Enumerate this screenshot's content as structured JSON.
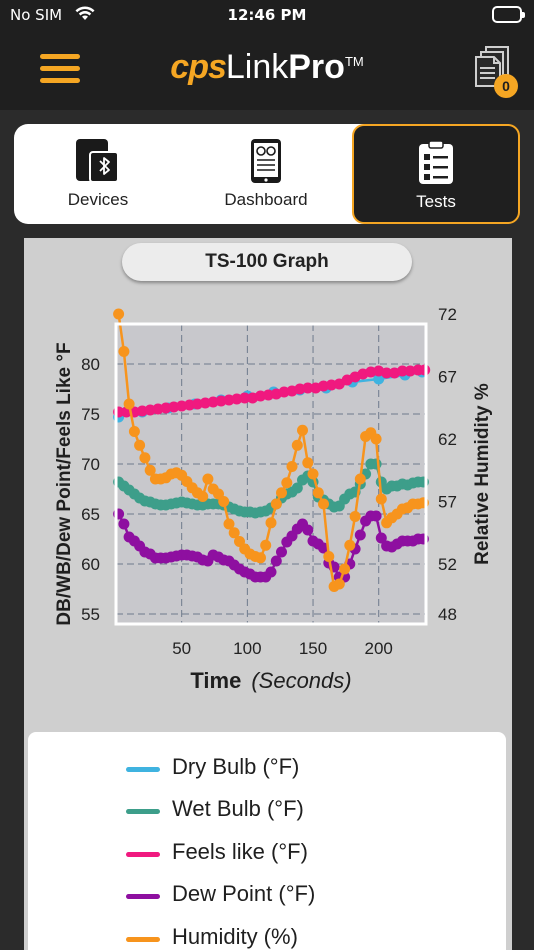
{
  "status": {
    "carrier": "No SIM",
    "time": "12:46 PM",
    "battery_color": "#3cc84a"
  },
  "header": {
    "brand_cps": "cps",
    "brand_link": "Link",
    "brand_pro": "Pro",
    "brand_tm": "TM",
    "menu_icon": "hamburger-icon",
    "docs_icon": "documents-icon",
    "docs_badge": "0",
    "accent": "#f5a623"
  },
  "tabs": [
    {
      "label": "Devices",
      "icon": "tablet-bluetooth-icon",
      "active": false
    },
    {
      "label": "Dashboard",
      "icon": "dashboard-tablet-icon",
      "active": false
    },
    {
      "label": "Tests",
      "icon": "checklist-icon",
      "active": true
    }
  ],
  "graph": {
    "title": "TS-100 Graph"
  },
  "chart_data": {
    "type": "line",
    "xlabel": "Time",
    "xlabel_unit": "(Seconds)",
    "ylabel_left": "DB/WB/Dew Point/Feels Like  °F",
    "ylabel_right": "Relative Humidity %",
    "x_ticks": [
      50,
      100,
      150,
      200
    ],
    "y_left_ticks": [
      55,
      60,
      65,
      70,
      75,
      80
    ],
    "y_right_ticks": [
      48,
      52,
      57,
      62,
      67,
      72
    ],
    "xlim": [
      0,
      236
    ],
    "ylim_left": [
      54,
      84
    ],
    "ylim_right": [
      47.2,
      71.2
    ],
    "grid": true,
    "legend_placement": "bottom",
    "series": [
      {
        "name": "Dry Bulb (°F)",
        "color": "#3fb3e0",
        "axis": "left",
        "x": [
          2,
          20,
          40,
          60,
          80,
          100,
          120,
          140,
          160,
          180,
          200,
          220,
          233
        ],
        "values": [
          74.7,
          75.2,
          75.6,
          76.0,
          76.4,
          76.8,
          77.2,
          77.4,
          77.6,
          78.2,
          78.5,
          78.9,
          79.2
        ]
      },
      {
        "name": "Wet Bulb (°F)",
        "color": "#3d9e8a",
        "axis": "left",
        "x": [
          2,
          6,
          10,
          14,
          18,
          22,
          26,
          30,
          34,
          38,
          42,
          46,
          50,
          54,
          58,
          62,
          66,
          70,
          74,
          78,
          82,
          86,
          90,
          94,
          98,
          102,
          106,
          110,
          114,
          118,
          122,
          126,
          130,
          134,
          138,
          142,
          146,
          150,
          154,
          158,
          162,
          166,
          170,
          174,
          178,
          182,
          186,
          190,
          194,
          198,
          202,
          206,
          210,
          214,
          218,
          222,
          226,
          230,
          234
        ],
        "values": [
          68.2,
          67.8,
          67.4,
          67.0,
          66.6,
          66.3,
          66.2,
          66.0,
          65.9,
          65.9,
          66.0,
          66.1,
          66.2,
          66.1,
          66.0,
          65.9,
          65.9,
          66.0,
          66.0,
          66.0,
          65.9,
          65.7,
          65.5,
          65.3,
          65.2,
          65.2,
          65.1,
          65.2,
          65.3,
          65.6,
          66.0,
          66.6,
          67.0,
          67.2,
          67.6,
          68.4,
          68.8,
          68.2,
          66.7,
          66.4,
          66.0,
          65.7,
          65.8,
          66.5,
          67.0,
          67.2,
          68.0,
          69.0,
          70.0,
          70.0,
          68.2,
          67.5,
          67.8,
          67.8,
          68.0,
          67.9,
          68.1,
          68.2,
          68.2
        ]
      },
      {
        "name": "Feels like (°F)",
        "color": "#f0197f",
        "axis": "left",
        "x": [
          2,
          8,
          14,
          20,
          26,
          32,
          38,
          44,
          50,
          56,
          62,
          68,
          74,
          80,
          86,
          92,
          98,
          104,
          110,
          116,
          122,
          128,
          134,
          140,
          146,
          152,
          158,
          164,
          170,
          176,
          182,
          188,
          194,
          200,
          206,
          212,
          218,
          224,
          230,
          235
        ],
        "values": [
          75.2,
          75.2,
          75.2,
          75.3,
          75.4,
          75.5,
          75.6,
          75.7,
          75.8,
          75.9,
          76.0,
          76.1,
          76.2,
          76.3,
          76.4,
          76.5,
          76.6,
          76.6,
          76.8,
          76.9,
          77.0,
          77.2,
          77.3,
          77.5,
          77.6,
          77.6,
          77.8,
          77.9,
          78.0,
          78.4,
          78.7,
          79.0,
          79.2,
          79.3,
          79.1,
          79.1,
          79.3,
          79.3,
          79.4,
          79.4
        ]
      },
      {
        "name": "Dew Point (°F)",
        "color": "#8e0fa0",
        "axis": "left",
        "x": [
          2,
          6,
          10,
          14,
          18,
          22,
          26,
          30,
          34,
          38,
          42,
          46,
          50,
          54,
          58,
          62,
          66,
          70,
          74,
          78,
          82,
          86,
          90,
          94,
          98,
          102,
          106,
          110,
          114,
          118,
          122,
          126,
          130,
          134,
          138,
          142,
          146,
          150,
          154,
          158,
          162,
          166,
          170,
          174,
          178,
          182,
          186,
          190,
          194,
          198,
          202,
          206,
          210,
          214,
          218,
          222,
          226,
          230,
          234
        ],
        "values": [
          65.0,
          64.0,
          62.7,
          62.3,
          61.8,
          61.2,
          61.0,
          60.6,
          60.6,
          60.6,
          60.7,
          60.8,
          60.9,
          60.9,
          60.8,
          60.7,
          60.4,
          60.3,
          60.9,
          60.7,
          60.4,
          60.3,
          59.9,
          59.5,
          59.2,
          59.0,
          58.7,
          58.7,
          58.7,
          59.2,
          60.3,
          61.2,
          62.2,
          62.8,
          63.5,
          64.0,
          63.4,
          62.3,
          62.0,
          61.6,
          60.1,
          59.7,
          58.7,
          58.7,
          60.0,
          61.5,
          62.9,
          64.3,
          64.8,
          64.8,
          62.6,
          61.8,
          61.7,
          62.0,
          62.3,
          62.3,
          62.3,
          62.5,
          62.5
        ]
      },
      {
        "name": "Humidity (%)",
        "color": "#f7941d",
        "axis": "right",
        "x": [
          2,
          6,
          10,
          14,
          18,
          22,
          26,
          30,
          34,
          38,
          42,
          46,
          50,
          54,
          58,
          62,
          66,
          70,
          74,
          78,
          82,
          86,
          90,
          94,
          98,
          102,
          106,
          110,
          114,
          118,
          122,
          126,
          130,
          134,
          138,
          142,
          146,
          150,
          154,
          158,
          162,
          166,
          170,
          174,
          178,
          182,
          186,
          190,
          194,
          198,
          202,
          206,
          210,
          214,
          218,
          222,
          226,
          230,
          234
        ],
        "values": [
          72.0,
          69.0,
          64.8,
          62.6,
          61.5,
          60.5,
          59.5,
          58.8,
          58.8,
          58.9,
          59.2,
          59.3,
          59.1,
          58.6,
          58.1,
          57.7,
          57.4,
          58.8,
          58.0,
          57.6,
          57.0,
          55.2,
          54.5,
          53.8,
          53.2,
          52.8,
          52.6,
          52.5,
          53.5,
          55.3,
          56.8,
          57.7,
          58.5,
          59.8,
          61.5,
          62.7,
          60.1,
          59.2,
          57.7,
          56.8,
          52.6,
          50.2,
          50.4,
          51.6,
          53.5,
          55.8,
          58.8,
          62.2,
          62.5,
          62.0,
          57.2,
          55.3,
          55.7,
          56.0,
          56.4,
          56.5,
          56.8,
          56.8,
          56.9
        ]
      }
    ]
  },
  "legend": {
    "items": [
      {
        "label": "Dry Bulb (°F)",
        "color": "#3fb3e0"
      },
      {
        "label": "Wet Bulb (°F)",
        "color": "#3d9e8a"
      },
      {
        "label": "Feels like (°F)",
        "color": "#f0197f"
      },
      {
        "label": "Dew Point (°F)",
        "color": "#8e0fa0"
      },
      {
        "label": "Humidity (%)",
        "color": "#f7941d"
      }
    ]
  }
}
